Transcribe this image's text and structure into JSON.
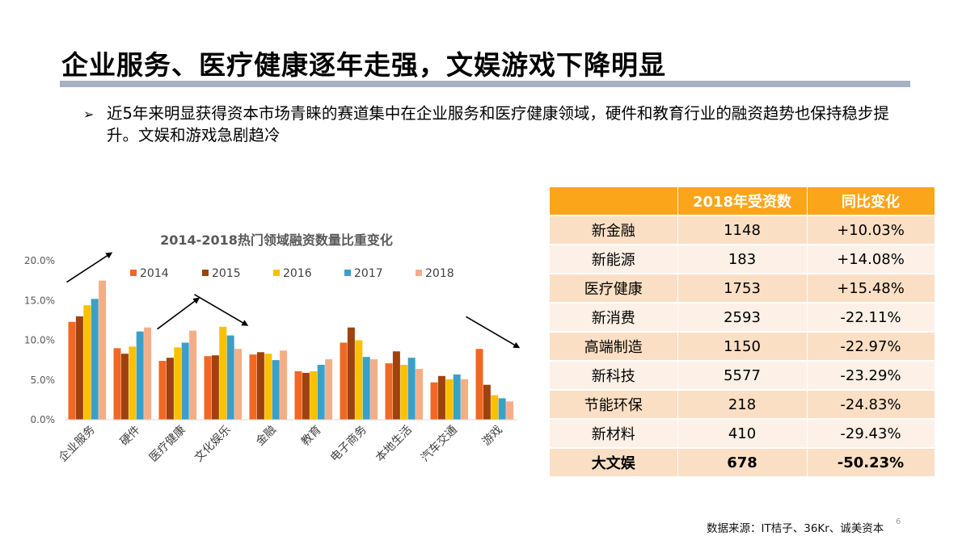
{
  "page": {
    "title": "企业服务、医疗健康逐年走强，文娱游戏下降明显",
    "bullet": "近5年来明显获得资本市场青睐的赛道集中在企业服务和医疗健康领域，硬件和教育行业的融资趋势也保持稳步提升。文娱和游戏急剧趋冷",
    "bullet_marker": "➢",
    "source": "数据来源：IT桔子、36Kr、诚美资本",
    "page_number": "6"
  },
  "chart_data": {
    "type": "bar",
    "title": "2014-2018热门领域融资数量比重变化",
    "categories": [
      "企业服务",
      "硬件",
      "医疗健康",
      "文化娱乐",
      "金融",
      "教育",
      "电子商务",
      "本地生活",
      "汽车交通",
      "游戏"
    ],
    "series": [
      {
        "name": "2014",
        "color": "#f26722",
        "values": [
          12.3,
          9.0,
          7.4,
          8.0,
          8.2,
          6.1,
          9.7,
          7.1,
          4.7,
          8.9
        ]
      },
      {
        "name": "2015",
        "color": "#a0420e",
        "values": [
          13.0,
          8.3,
          7.8,
          8.1,
          8.5,
          5.9,
          11.6,
          8.6,
          5.5,
          4.4
        ]
      },
      {
        "name": "2016",
        "color": "#fcc000",
        "values": [
          14.4,
          9.2,
          9.1,
          11.7,
          8.3,
          6.1,
          10.0,
          6.9,
          5.1,
          3.1
        ]
      },
      {
        "name": "2017",
        "color": "#3aa0c7",
        "values": [
          15.2,
          11.1,
          9.7,
          10.6,
          7.5,
          6.9,
          7.9,
          7.8,
          5.7,
          2.7
        ]
      },
      {
        "name": "2018",
        "color": "#f4ae86",
        "values": [
          17.5,
          11.6,
          11.2,
          8.9,
          8.7,
          7.6,
          7.6,
          6.4,
          5.1,
          2.3
        ]
      }
    ],
    "y_ticks": [
      "0.0%",
      "5.0%",
      "10.0%",
      "15.0%",
      "20.0%"
    ],
    "ylim": [
      0,
      20
    ],
    "grid": false,
    "legend_position": "top",
    "trend_arrows": [
      {
        "category": "企业服务",
        "direction": "up"
      },
      {
        "category": "医疗健康",
        "direction": "up"
      },
      {
        "category": "文化娱乐",
        "direction": "down"
      },
      {
        "category": "游戏",
        "direction": "down"
      }
    ]
  },
  "table": {
    "headers": [
      "",
      "2018年受资数",
      "同比变化"
    ],
    "rows": [
      {
        "name": "新金融",
        "count": "1148",
        "change": "+10.03%",
        "bold": false
      },
      {
        "name": "新能源",
        "count": "183",
        "change": "+14.08%",
        "bold": false
      },
      {
        "name": "医疗健康",
        "count": "1753",
        "change": "+15.48%",
        "bold": false
      },
      {
        "name": "新消费",
        "count": "2593",
        "change": "-22.11%",
        "bold": false
      },
      {
        "name": "高端制造",
        "count": "1150",
        "change": "-22.97%",
        "bold": false
      },
      {
        "name": "新科技",
        "count": "5577",
        "change": "-23.29%",
        "bold": false
      },
      {
        "name": "节能环保",
        "count": "218",
        "change": "-24.83%",
        "bold": false
      },
      {
        "name": "新材料",
        "count": "410",
        "change": "-29.43%",
        "bold": false
      },
      {
        "name": "大文娱",
        "count": "678",
        "change": "-50.23%",
        "bold": true
      }
    ]
  }
}
